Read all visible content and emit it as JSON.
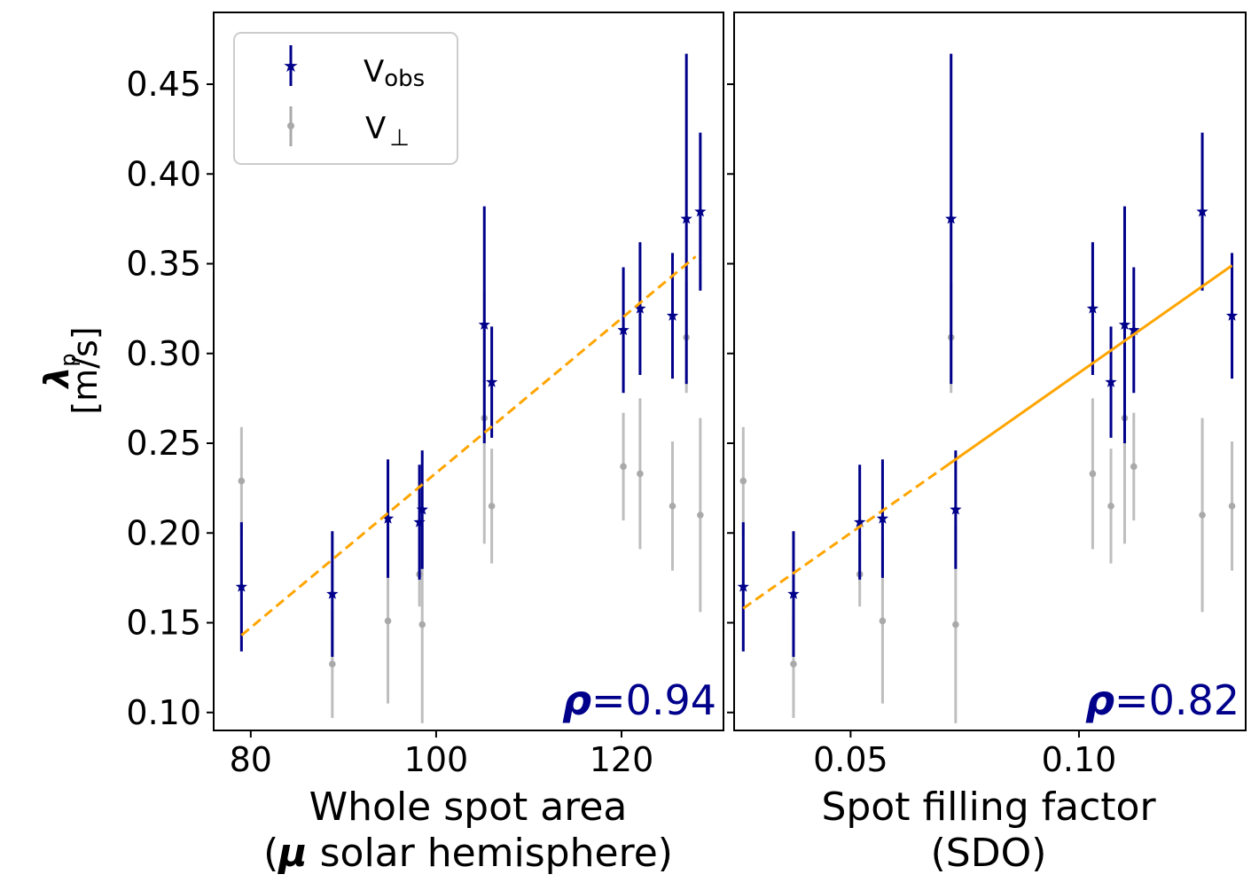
{
  "figure": {
    "ylabel_symbol": "λ",
    "ylabel_sub": "p",
    "ylabel_units": "[m/s]"
  },
  "legend": {
    "obs_label": "V",
    "obs_sub": "obs",
    "perp_label": "V",
    "perp_sub": "⊥"
  },
  "colors": {
    "obs": "#00008b",
    "perp": "#a9a9a9",
    "fit": "#ffa500",
    "rho": "#00008b"
  },
  "chart_data": [
    {
      "type": "scatter",
      "panel": "left",
      "xlabel_line1": "Whole spot area",
      "xlabel_line2_prefix": "(",
      "xlabel_line2_mu": "μ",
      "xlabel_line2_rest": " solar hemisphere)",
      "ylabel": "λp [m/s]",
      "xlim": [
        76,
        131
      ],
      "ylim": [
        0.09,
        0.49
      ],
      "xticks": [
        80,
        100,
        120
      ],
      "xtick_labels": [
        "80",
        "100",
        "120"
      ],
      "yticks": [
        0.1,
        0.15,
        0.2,
        0.25,
        0.3,
        0.35,
        0.4,
        0.45
      ],
      "ytick_labels": [
        "0.10",
        "0.15",
        "0.20",
        "0.25",
        "0.30",
        "0.35",
        "0.40",
        "0.45"
      ],
      "rho_symbol": "ρ",
      "rho_text": "=0.94",
      "fit": {
        "style": "dashed",
        "x": [
          79,
          128
        ],
        "y": [
          0.143,
          0.354
        ]
      },
      "series": [
        {
          "name": "V_obs",
          "marker": "star",
          "x": [
            79,
            88.8,
            94.8,
            98.2,
            98.5,
            105.2,
            106.0,
            120.2,
            122.0,
            125.5,
            127.0,
            128.5
          ],
          "y": [
            0.17,
            0.166,
            0.208,
            0.206,
            0.213,
            0.316,
            0.284,
            0.313,
            0.325,
            0.321,
            0.375,
            0.379
          ],
          "err": [
            0.036,
            0.035,
            0.033,
            0.032,
            0.033,
            0.066,
            0.031,
            0.035,
            0.037,
            0.035,
            0.092,
            0.044
          ]
        },
        {
          "name": "V_perp",
          "marker": "dot",
          "x": [
            79,
            88.8,
            94.8,
            98.2,
            98.5,
            105.2,
            106.0,
            120.2,
            122.0,
            125.5,
            127.0,
            128.5
          ],
          "y": [
            0.229,
            0.127,
            0.151,
            0.177,
            0.149,
            0.264,
            0.215,
            0.237,
            0.233,
            0.215,
            0.309,
            0.21
          ],
          "err": [
            0.03,
            0.03,
            0.046,
            0.018,
            0.055,
            0.07,
            0.032,
            0.03,
            0.042,
            0.036,
            0.031,
            0.054
          ]
        }
      ]
    },
    {
      "type": "scatter",
      "panel": "right",
      "xlabel_line1": "Spot filling factor",
      "xlabel_line2": "(SDO)",
      "xlim": [
        0.0245,
        0.1365
      ],
      "ylim": [
        0.09,
        0.49
      ],
      "xticks": [
        0.05,
        0.1
      ],
      "xtick_labels": [
        "0.05",
        "0.10"
      ],
      "rho_symbol": "ρ",
      "rho_text": "=0.82",
      "fit": {
        "style": "dashed-then-solid",
        "x": [
          0.0265,
          0.1335
        ],
        "y": [
          0.158,
          0.349
        ]
      },
      "series": [
        {
          "name": "V_obs",
          "marker": "star",
          "x": [
            0.0265,
            0.0375,
            0.052,
            0.057,
            0.072,
            0.073,
            0.103,
            0.107,
            0.11,
            0.112,
            0.127,
            0.1335
          ],
          "y": [
            0.17,
            0.166,
            0.206,
            0.208,
            0.375,
            0.213,
            0.325,
            0.284,
            0.316,
            0.313,
            0.379,
            0.321
          ],
          "err": [
            0.036,
            0.035,
            0.032,
            0.033,
            0.092,
            0.033,
            0.037,
            0.031,
            0.066,
            0.035,
            0.044,
            0.035
          ]
        },
        {
          "name": "V_perp",
          "marker": "dot",
          "x": [
            0.0265,
            0.0375,
            0.052,
            0.057,
            0.072,
            0.073,
            0.103,
            0.107,
            0.11,
            0.112,
            0.127,
            0.1335
          ],
          "y": [
            0.229,
            0.127,
            0.177,
            0.151,
            0.309,
            0.149,
            0.233,
            0.215,
            0.264,
            0.237,
            0.21,
            0.215
          ],
          "err": [
            0.03,
            0.03,
            0.018,
            0.046,
            0.031,
            0.055,
            0.042,
            0.032,
            0.07,
            0.03,
            0.054,
            0.036
          ]
        }
      ]
    }
  ]
}
